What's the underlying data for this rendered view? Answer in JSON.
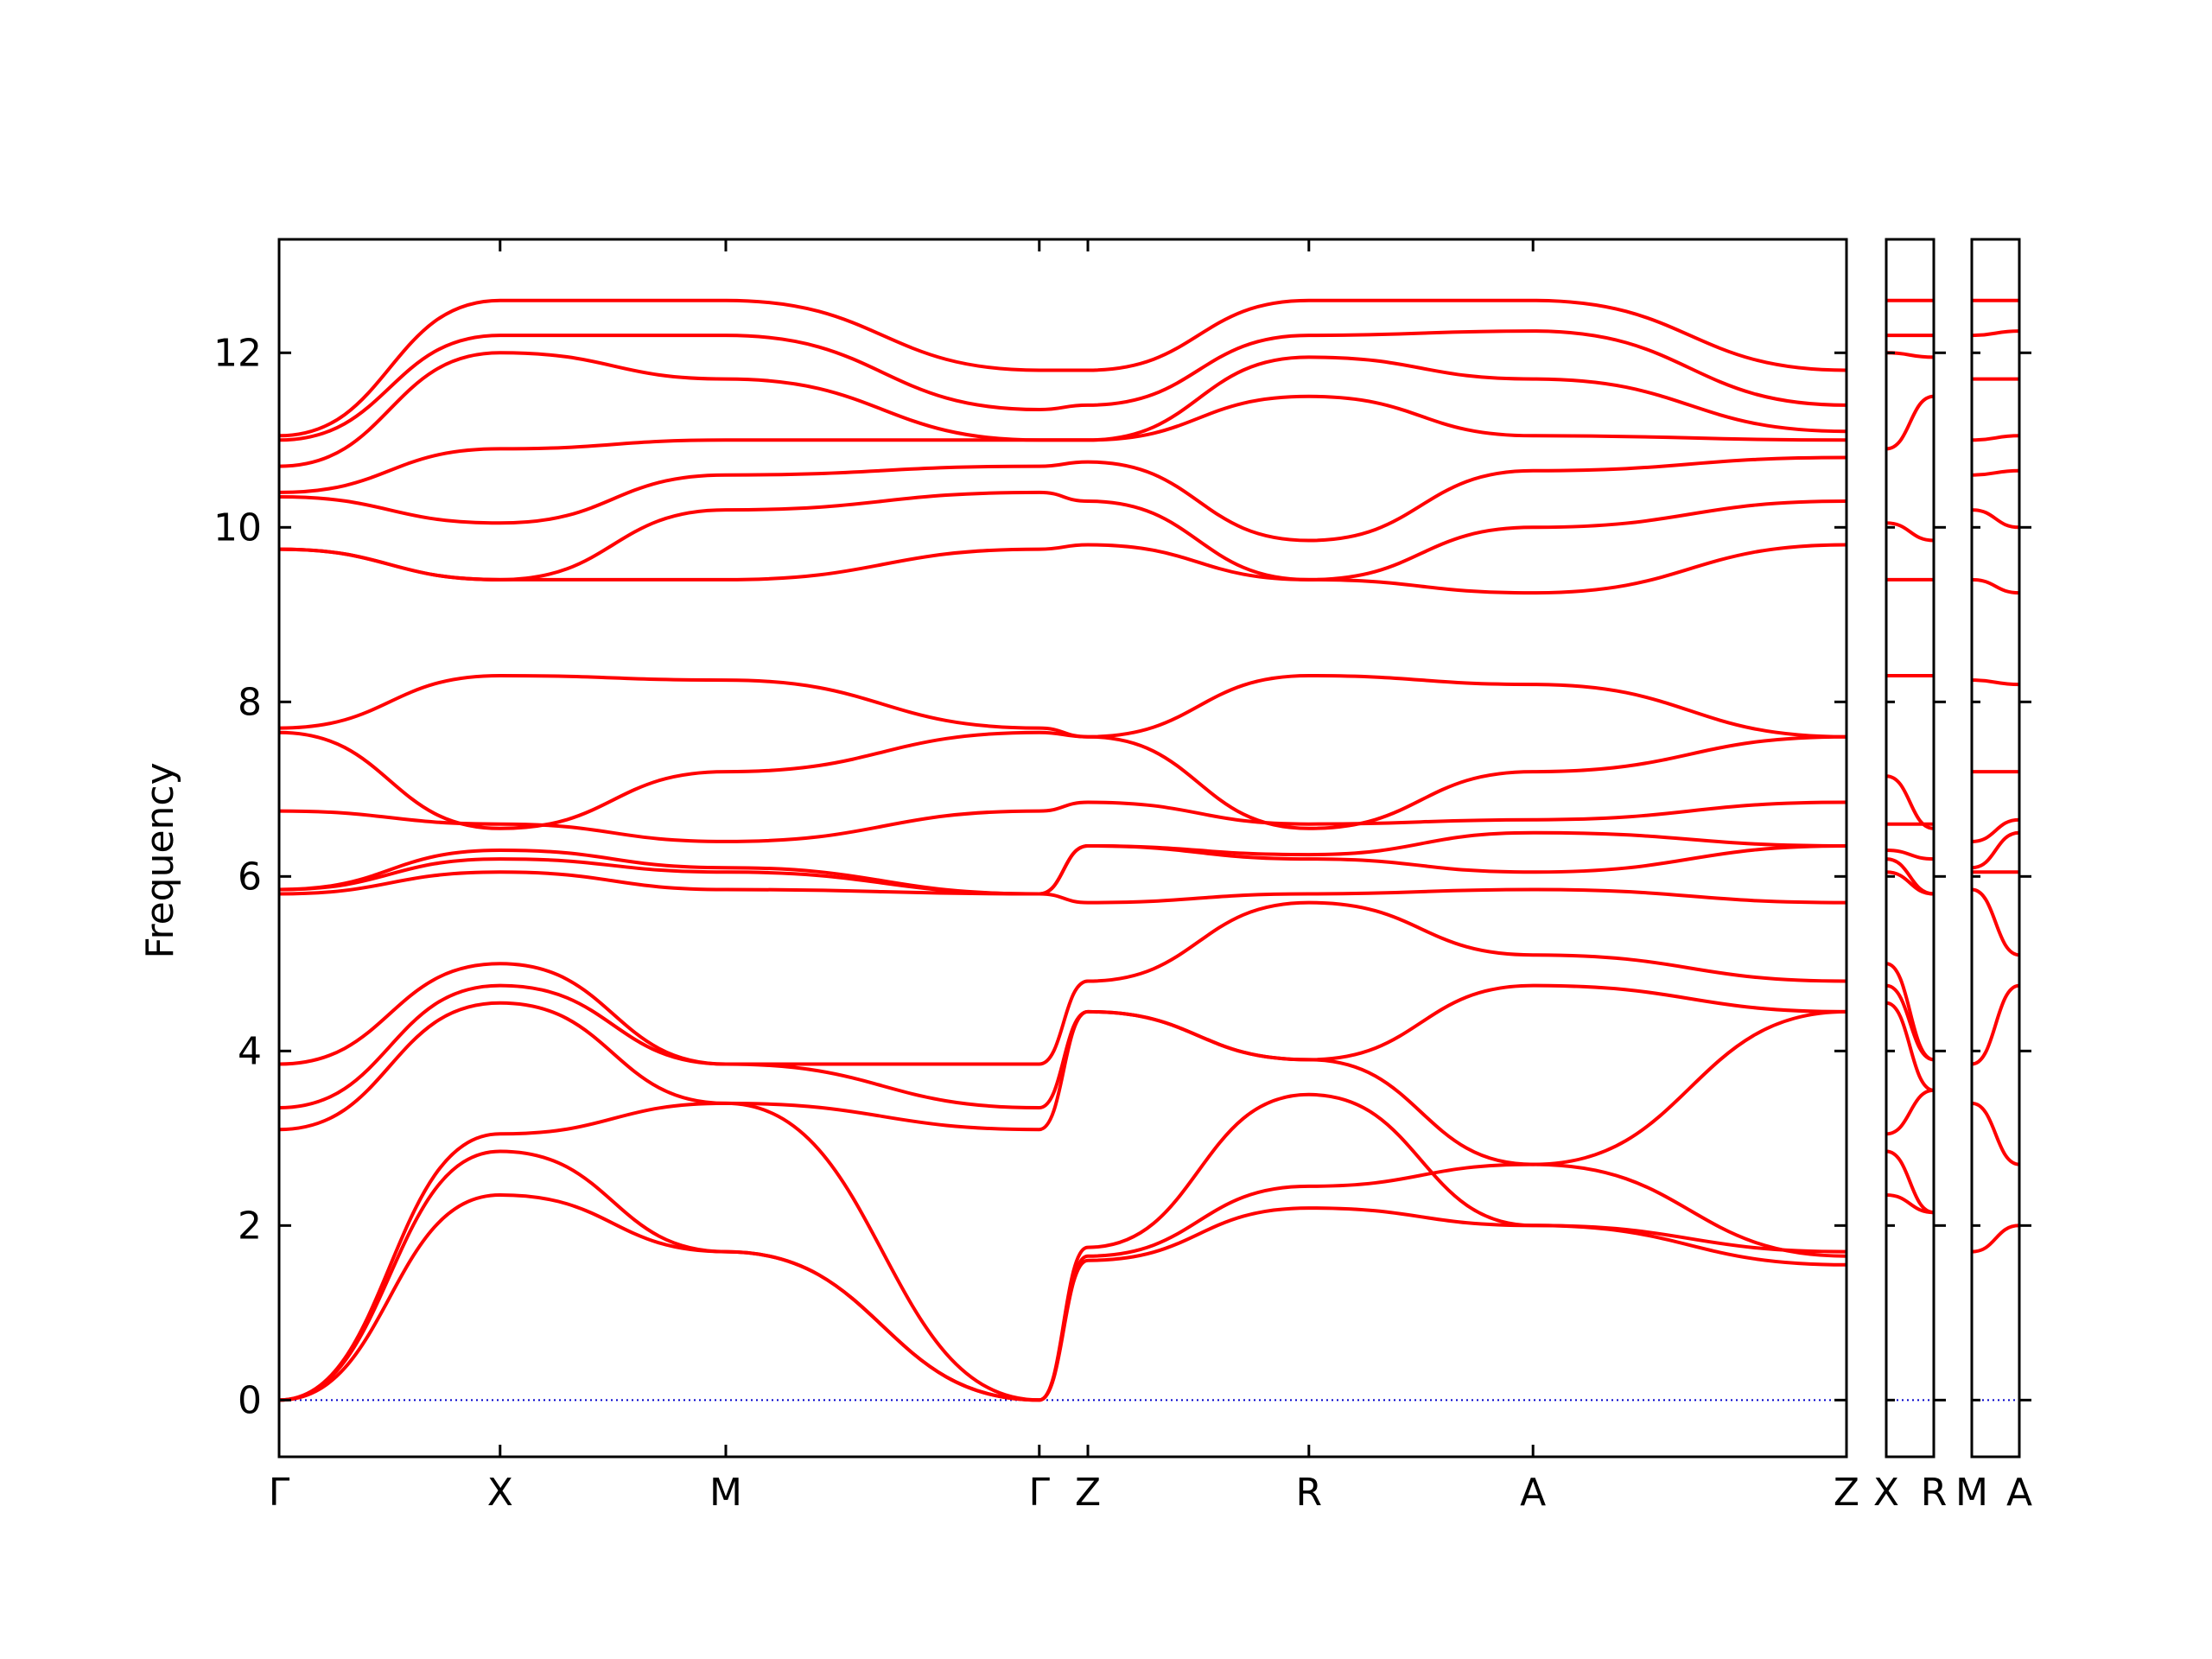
{
  "chart_data": {
    "type": "line",
    "title": "",
    "xlabel": "",
    "ylabel": "Frequency",
    "ylim": [
      -0.65,
      13.3
    ],
    "y_ticks": [
      0,
      2,
      4,
      6,
      8,
      10,
      12
    ],
    "y_tick_labels": [
      "0",
      "2",
      "4",
      "6",
      "8",
      "10",
      "12"
    ],
    "grid": false,
    "legend": "none",
    "line_color": "#ff0000",
    "zero_line_color": "#0000cc",
    "zero_line_value": 0,
    "panels": [
      {
        "name": "main",
        "x_range": [
          0,
          1
        ],
        "ticks": [
          {
            "pos": 0.0,
            "label": "Γ"
          },
          {
            "pos": 0.141,
            "label": "X"
          },
          {
            "pos": 0.285,
            "label": "M"
          },
          {
            "pos": 0.485,
            "label": "Γ"
          },
          {
            "pos": 0.516,
            "label": "Z"
          },
          {
            "pos": 0.657,
            "label": "R"
          },
          {
            "pos": 0.8,
            "label": "A"
          },
          {
            "pos": 1.0,
            "label": "Z"
          }
        ]
      },
      {
        "name": "X-R",
        "x_range": [
          0,
          1
        ],
        "ticks": [
          {
            "pos": 0.0,
            "label": "X"
          },
          {
            "pos": 1.0,
            "label": "R"
          }
        ]
      },
      {
        "name": "M-A",
        "x_range": [
          0,
          1
        ],
        "ticks": [
          {
            "pos": 0.0,
            "label": "M"
          },
          {
            "pos": 1.0,
            "label": "A"
          }
        ]
      }
    ],
    "series": [
      {
        "panel": 0,
        "x": [
          0,
          0.141,
          0.285,
          0.485,
          0.516,
          0.657,
          0.8,
          1.0
        ],
        "values": [
          0,
          2.35,
          1.7,
          0,
          1.6,
          2.2,
          2.0,
          1.55
        ]
      },
      {
        "panel": 0,
        "x": [
          0,
          0.141,
          0.285,
          0.485,
          0.516,
          0.657,
          0.8,
          1.0
        ],
        "values": [
          0,
          2.85,
          1.7,
          0,
          1.65,
          2.45,
          2.7,
          1.65
        ]
      },
      {
        "panel": 0,
        "x": [
          0,
          0.141,
          0.285,
          0.485,
          0.516,
          0.657,
          0.8,
          1.0
        ],
        "values": [
          0,
          3.05,
          3.4,
          0,
          1.75,
          3.5,
          2.0,
          1.7
        ]
      },
      {
        "panel": 0,
        "x": [
          0,
          0.141,
          0.285,
          0.485,
          0.516,
          0.657,
          0.8,
          1.0
        ],
        "values": [
          3.1,
          4.55,
          3.4,
          3.1,
          4.45,
          3.9,
          2.7,
          4.45
        ]
      },
      {
        "panel": 0,
        "x": [
          0,
          0.141,
          0.285,
          0.485,
          0.516,
          0.657,
          0.8,
          1.0
        ],
        "values": [
          3.35,
          4.75,
          3.85,
          3.35,
          4.45,
          3.9,
          4.75,
          4.45
        ]
      },
      {
        "panel": 0,
        "x": [
          0,
          0.141,
          0.285,
          0.485,
          0.516,
          0.657,
          0.8,
          1.0
        ],
        "values": [
          3.85,
          5.0,
          3.85,
          3.85,
          4.8,
          5.7,
          5.1,
          4.8
        ]
      },
      {
        "panel": 0,
        "x": [
          0,
          0.141,
          0.285,
          0.485,
          0.516,
          0.657,
          0.8,
          1.0
        ],
        "values": [
          5.8,
          6.05,
          5.85,
          5.8,
          5.7,
          5.8,
          5.85,
          5.7
        ]
      },
      {
        "panel": 0,
        "x": [
          0,
          0.141,
          0.285,
          0.485,
          0.516,
          0.657,
          0.8,
          1.0
        ],
        "values": [
          5.85,
          6.2,
          6.05,
          5.8,
          6.35,
          6.2,
          6.05,
          6.35
        ]
      },
      {
        "panel": 0,
        "x": [
          0,
          0.141,
          0.285,
          0.485,
          0.516,
          0.657,
          0.8,
          1.0
        ],
        "values": [
          5.85,
          6.3,
          6.1,
          5.8,
          6.35,
          6.25,
          6.5,
          6.35
        ]
      },
      {
        "panel": 0,
        "x": [
          0,
          0.141,
          0.285,
          0.485,
          0.516,
          0.657,
          0.8,
          1.0
        ],
        "values": [
          6.75,
          6.6,
          6.4,
          6.75,
          6.85,
          6.6,
          6.65,
          6.85
        ]
      },
      {
        "panel": 0,
        "x": [
          0,
          0.141,
          0.285,
          0.485,
          0.516,
          0.657,
          0.8,
          1.0
        ],
        "values": [
          7.65,
          6.55,
          7.2,
          7.65,
          7.6,
          6.55,
          7.2,
          7.6
        ]
      },
      {
        "panel": 0,
        "x": [
          0,
          0.141,
          0.285,
          0.485,
          0.516,
          0.657,
          0.8,
          1.0
        ],
        "values": [
          7.7,
          8.3,
          8.25,
          7.7,
          7.6,
          8.3,
          8.2,
          7.6
        ]
      },
      {
        "panel": 0,
        "x": [
          0,
          0.141,
          0.285,
          0.485,
          0.516,
          0.657,
          0.8,
          1.0
        ],
        "values": [
          9.75,
          9.4,
          9.4,
          9.75,
          9.8,
          9.4,
          9.25,
          9.8
        ]
      },
      {
        "panel": 0,
        "x": [
          0,
          0.141,
          0.285,
          0.485,
          0.516,
          0.657,
          0.8,
          1.0
        ],
        "values": [
          9.75,
          9.4,
          10.2,
          10.4,
          10.3,
          9.4,
          10.0,
          10.3
        ]
      },
      {
        "panel": 0,
        "x": [
          0,
          0.141,
          0.285,
          0.485,
          0.516,
          0.657,
          0.8,
          1.0
        ],
        "values": [
          10.35,
          10.05,
          10.6,
          10.7,
          10.75,
          9.85,
          10.65,
          10.8
        ]
      },
      {
        "panel": 0,
        "x": [
          0,
          0.141,
          0.285,
          0.485,
          0.516,
          0.657,
          0.8,
          1.0
        ],
        "values": [
          10.4,
          10.9,
          11.0,
          11.0,
          11.0,
          11.5,
          11.05,
          11.0
        ]
      },
      {
        "panel": 0,
        "x": [
          0,
          0.141,
          0.285,
          0.485,
          0.516,
          0.657,
          0.8,
          1.0
        ],
        "values": [
          10.7,
          12.0,
          11.7,
          11.0,
          11.0,
          11.95,
          11.7,
          11.1
        ]
      },
      {
        "panel": 0,
        "x": [
          0,
          0.141,
          0.285,
          0.485,
          0.516,
          0.657,
          0.8,
          1.0
        ],
        "values": [
          11.0,
          12.2,
          12.2,
          11.35,
          11.4,
          12.2,
          12.25,
          11.4
        ]
      },
      {
        "panel": 0,
        "x": [
          0,
          0.141,
          0.285,
          0.485,
          0.516,
          0.657,
          0.8,
          1.0
        ],
        "values": [
          11.05,
          12.6,
          12.6,
          11.8,
          11.8,
          12.6,
          12.6,
          11.8
        ]
      },
      {
        "panel": 1,
        "x": [
          0,
          1
        ],
        "values": [
          2.35,
          2.15
        ]
      },
      {
        "panel": 1,
        "x": [
          0,
          1
        ],
        "values": [
          2.85,
          2.15
        ]
      },
      {
        "panel": 1,
        "x": [
          0,
          1
        ],
        "values": [
          3.05,
          3.55
        ]
      },
      {
        "panel": 1,
        "x": [
          0,
          1
        ],
        "values": [
          4.55,
          3.55
        ]
      },
      {
        "panel": 1,
        "x": [
          0,
          1
        ],
        "values": [
          4.75,
          3.9
        ]
      },
      {
        "panel": 1,
        "x": [
          0,
          1
        ],
        "values": [
          5.0,
          3.9
        ]
      },
      {
        "panel": 1,
        "x": [
          0,
          1
        ],
        "values": [
          6.05,
          5.8
        ]
      },
      {
        "panel": 1,
        "x": [
          0,
          1
        ],
        "values": [
          6.2,
          5.8
        ]
      },
      {
        "panel": 1,
        "x": [
          0,
          1
        ],
        "values": [
          6.3,
          6.2
        ]
      },
      {
        "panel": 1,
        "x": [
          0,
          1
        ],
        "values": [
          6.6,
          6.6
        ]
      },
      {
        "panel": 1,
        "x": [
          0,
          1
        ],
        "values": [
          7.15,
          6.55
        ]
      },
      {
        "panel": 1,
        "x": [
          0,
          1
        ],
        "values": [
          8.3,
          8.3
        ]
      },
      {
        "panel": 1,
        "x": [
          0,
          1
        ],
        "values": [
          9.4,
          9.4
        ]
      },
      {
        "panel": 1,
        "x": [
          0,
          1
        ],
        "values": [
          10.05,
          9.85
        ]
      },
      {
        "panel": 1,
        "x": [
          0,
          1
        ],
        "values": [
          10.9,
          11.5
        ]
      },
      {
        "panel": 1,
        "x": [
          0,
          1
        ],
        "values": [
          12.0,
          11.95
        ]
      },
      {
        "panel": 1,
        "x": [
          0,
          1
        ],
        "values": [
          12.2,
          12.2
        ]
      },
      {
        "panel": 1,
        "x": [
          0,
          1
        ],
        "values": [
          12.6,
          12.6
        ]
      },
      {
        "panel": 2,
        "x": [
          0,
          1
        ],
        "values": [
          1.7,
          2.0
        ]
      },
      {
        "panel": 2,
        "x": [
          0,
          1
        ],
        "values": [
          3.4,
          2.7
        ]
      },
      {
        "panel": 2,
        "x": [
          0,
          1
        ],
        "values": [
          3.85,
          4.75
        ]
      },
      {
        "panel": 2,
        "x": [
          0,
          1
        ],
        "values": [
          5.85,
          5.1
        ]
      },
      {
        "panel": 2,
        "x": [
          0,
          1
        ],
        "values": [
          6.05,
          6.05
        ]
      },
      {
        "panel": 2,
        "x": [
          0,
          1
        ],
        "values": [
          6.1,
          6.5
        ]
      },
      {
        "panel": 2,
        "x": [
          0,
          1
        ],
        "values": [
          6.4,
          6.65
        ]
      },
      {
        "panel": 2,
        "x": [
          0,
          1
        ],
        "values": [
          7.2,
          7.2
        ]
      },
      {
        "panel": 2,
        "x": [
          0,
          1
        ],
        "values": [
          8.25,
          8.2
        ]
      },
      {
        "panel": 2,
        "x": [
          0,
          1
        ],
        "values": [
          9.4,
          9.25
        ]
      },
      {
        "panel": 2,
        "x": [
          0,
          1
        ],
        "values": [
          10.2,
          10.0
        ]
      },
      {
        "panel": 2,
        "x": [
          0,
          1
        ],
        "values": [
          10.6,
          10.65
        ]
      },
      {
        "panel": 2,
        "x": [
          0,
          1
        ],
        "values": [
          11.0,
          11.05
        ]
      },
      {
        "panel": 2,
        "x": [
          0,
          1
        ],
        "values": [
          11.7,
          11.7
        ]
      },
      {
        "panel": 2,
        "x": [
          0,
          1
        ],
        "values": [
          12.2,
          12.25
        ]
      },
      {
        "panel": 2,
        "x": [
          0,
          1
        ],
        "values": [
          12.6,
          12.6
        ]
      }
    ]
  }
}
